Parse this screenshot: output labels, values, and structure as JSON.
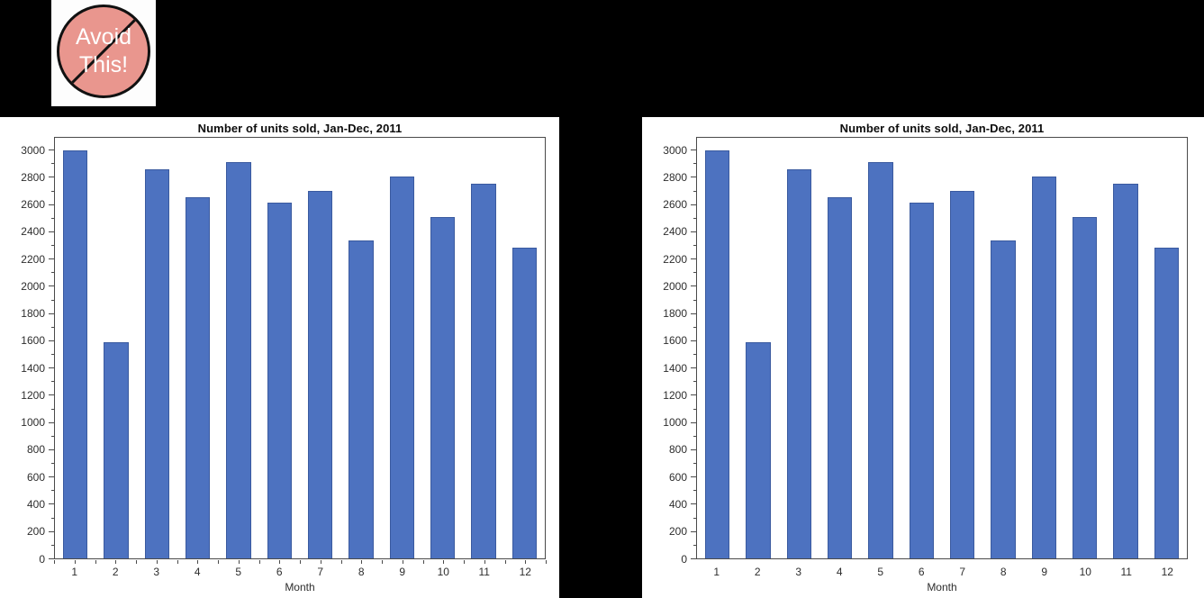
{
  "page": {
    "background": "#000000",
    "panel_background": "#ffffff"
  },
  "badge": {
    "line1": "Avoid",
    "line2": "This!",
    "fill_color": "#e9968e",
    "border_color": "#111111",
    "text_color": "#ffffff"
  },
  "chart_data": [
    {
      "type": "bar",
      "title": "Number of units sold, Jan-Dec, 2011",
      "xlabel": "Month",
      "ylabel": "",
      "categories": [
        "1",
        "2",
        "3",
        "4",
        "5",
        "6",
        "7",
        "8",
        "9",
        "10",
        "11",
        "12"
      ],
      "values": [
        3005,
        1590,
        2870,
        2660,
        2920,
        2625,
        2710,
        2345,
        2815,
        2515,
        2760,
        2290
      ],
      "ylim": [
        0,
        3100
      ],
      "ytick_step": 200,
      "yminor_step": 100,
      "ytick_max_label": 3000,
      "x_axis_minor_ticks": true,
      "grid": false,
      "legend": false,
      "bar_color": "#4d72c0",
      "bar_border_color": "#3a5a9f",
      "axis_color": "#4a4a4a"
    },
    {
      "type": "bar",
      "title": "Number of units sold, Jan-Dec, 2011",
      "xlabel": "Month",
      "ylabel": "",
      "categories": [
        "1",
        "2",
        "3",
        "4",
        "5",
        "6",
        "7",
        "8",
        "9",
        "10",
        "11",
        "12"
      ],
      "values": [
        3005,
        1590,
        2870,
        2660,
        2920,
        2625,
        2710,
        2345,
        2815,
        2515,
        2760,
        2290
      ],
      "ylim": [
        0,
        3100
      ],
      "ytick_step": 200,
      "yminor_step": 100,
      "ytick_max_label": 3000,
      "x_axis_minor_ticks": false,
      "grid": false,
      "legend": false,
      "bar_color": "#4d72c0",
      "bar_border_color": "#3a5a9f",
      "axis_color": "#4a4a4a"
    }
  ]
}
